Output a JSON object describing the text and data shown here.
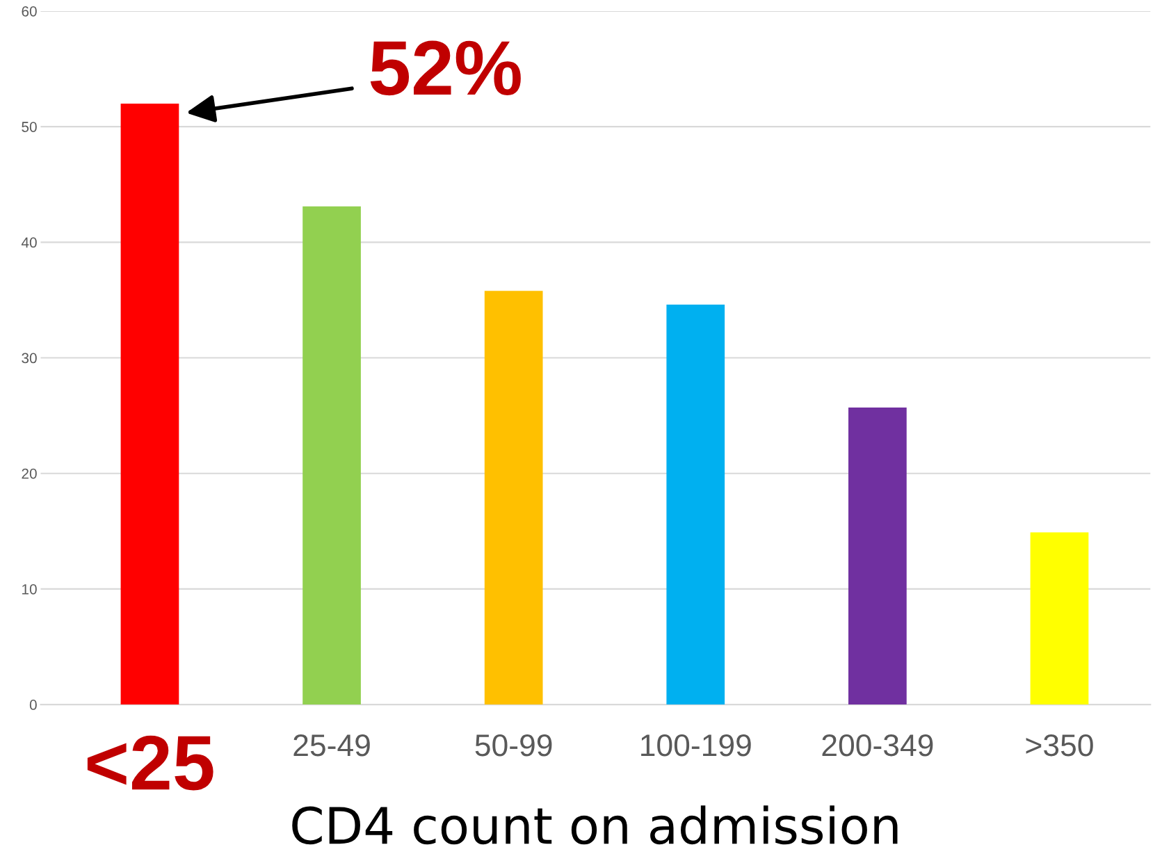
{
  "chart_data": {
    "type": "bar",
    "xlabel": "CD4 count on admission",
    "categories": [
      "<25",
      "25-49",
      "50-99",
      "100-199",
      "200-349",
      ">350"
    ],
    "values": [
      52,
      43.1,
      35.8,
      34.6,
      25.7,
      14.9
    ],
    "colors": [
      "#ff0000",
      "#92d050",
      "#ffc000",
      "#00b0f0",
      "#7030a0",
      "#ffff00"
    ],
    "ylim": [
      0,
      60
    ],
    "yticks": [
      0,
      10,
      20,
      30,
      40,
      50,
      60
    ],
    "grid": "y",
    "annotations": [
      {
        "text": "52%",
        "x": "<25",
        "y": 52
      }
    ]
  }
}
